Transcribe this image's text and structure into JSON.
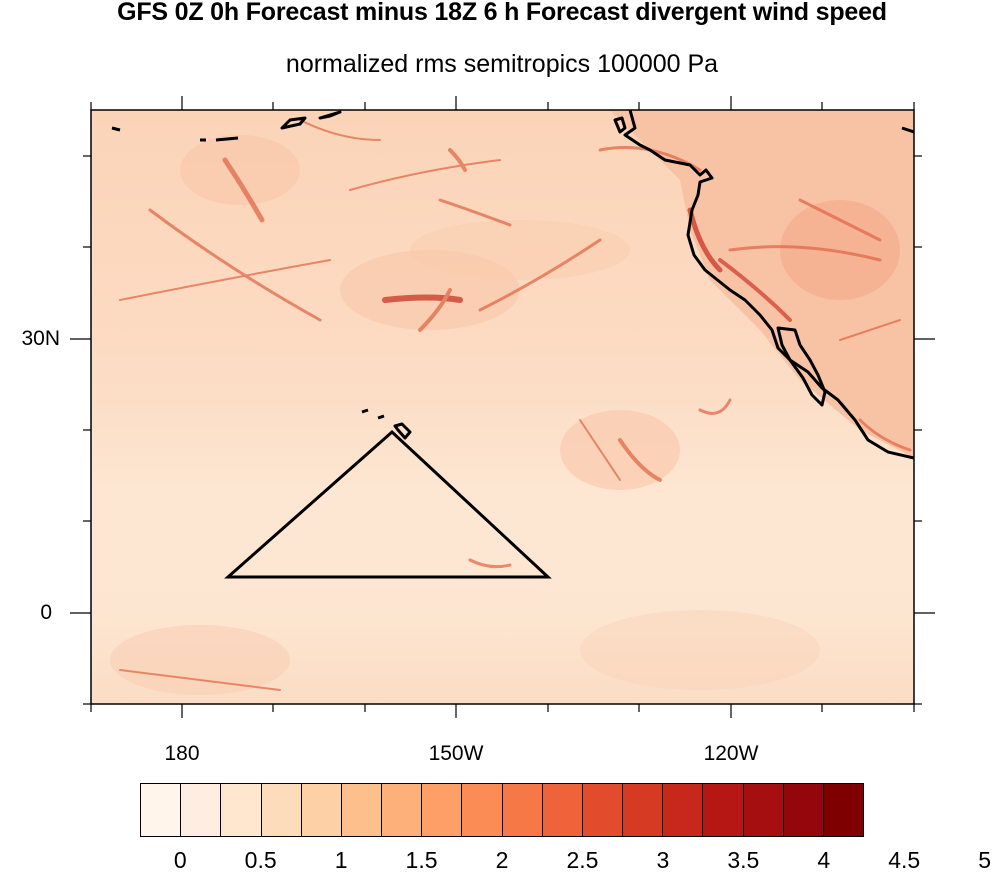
{
  "title": "GFS 0Z 0h Forecast minus 18Z 6 h Forecast divergent wind speed",
  "subtitle": "normalized rms semitropics 100000 Pa",
  "map": {
    "lat_labels": [
      "30N",
      "0"
    ],
    "lon_labels": [
      "180",
      "150W",
      "120W"
    ]
  },
  "colorbar": {
    "labels": [
      "0",
      "0.5",
      "1",
      "1.5",
      "2",
      "2.5",
      "3",
      "3.5",
      "4",
      "4.5",
      "5"
    ],
    "colors": [
      "#fff5eb",
      "#feede0",
      "#fee6cf",
      "#fddcbc",
      "#fdd0a6",
      "#fdc08d",
      "#fdb07a",
      "#fd9f67",
      "#fc8c55",
      "#f67846",
      "#ee6339",
      "#e24c2d",
      "#d63a22",
      "#c8281c",
      "#b61714",
      "#a50f0f",
      "#93070c",
      "#7f0000"
    ]
  },
  "colors": {
    "land_tint": "#f7b898",
    "ocean_tint": "#fbdcc4",
    "low_tint": "#fde8d4",
    "streak": "#d23a2a"
  }
}
